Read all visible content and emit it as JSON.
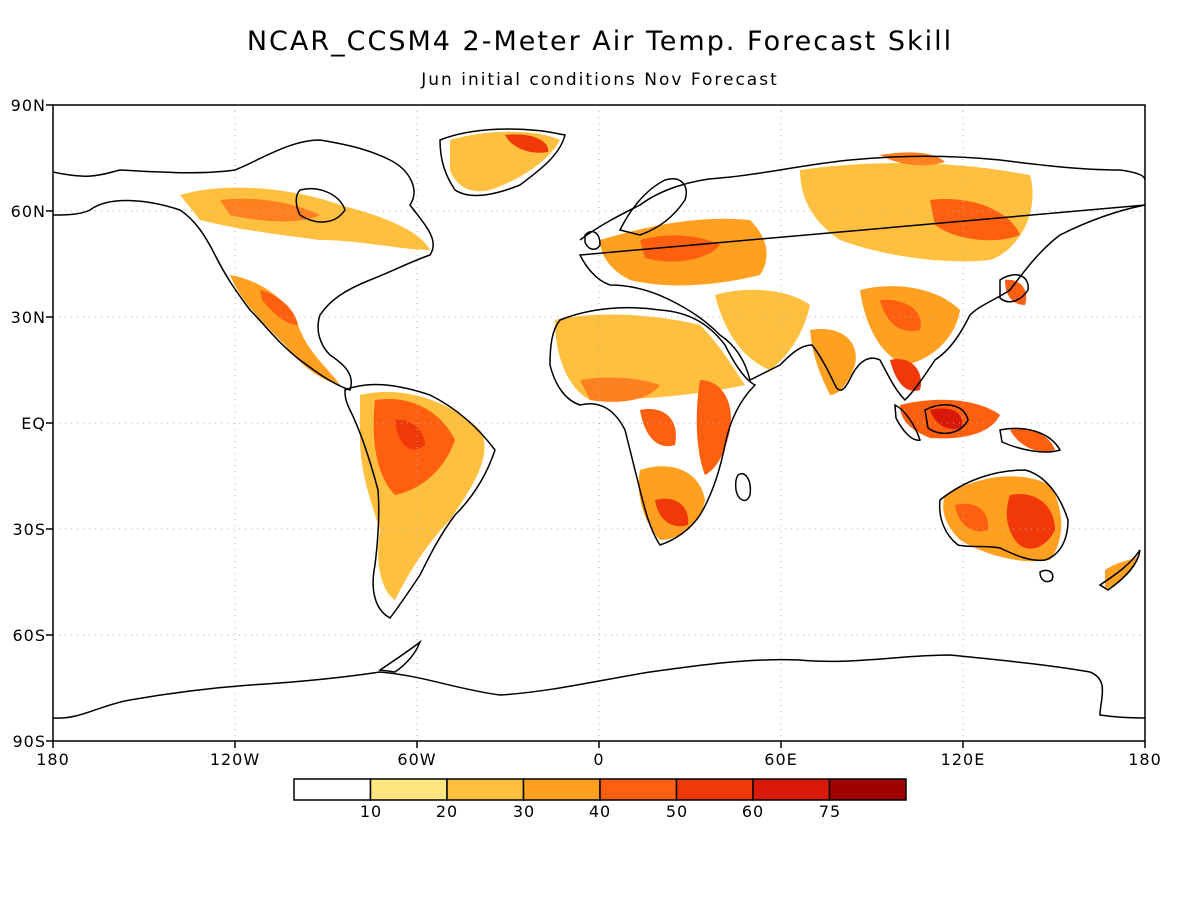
{
  "title": "NCAR_CCSM4 2-Meter Air Temp. Forecast Skill",
  "subtitle": "Jun initial conditions  Nov Forecast",
  "lat_labels": [
    "90N",
    "60N",
    "30N",
    "EQ",
    "30S",
    "60S",
    "90S"
  ],
  "lon_labels": [
    "180",
    "120W",
    "60W",
    "0",
    "60E",
    "120E",
    "180"
  ],
  "colorbar": {
    "colors": [
      "#ffffff",
      "#ffe680",
      "#ffc040",
      "#ffa020",
      "#ff6010",
      "#f03808",
      "#d81808",
      "#a00000"
    ],
    "tick_labels": [
      "10",
      "20",
      "30",
      "40",
      "50",
      "60",
      "75"
    ]
  }
}
